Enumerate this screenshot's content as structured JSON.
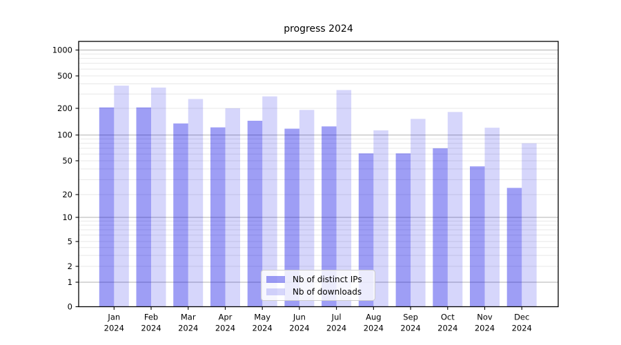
{
  "chart_data": {
    "type": "bar",
    "title": "progress 2024",
    "categories": [
      "Jan 2024",
      "Feb 2024",
      "Mar 2024",
      "Apr 2024",
      "May 2024",
      "Jun 2024",
      "Jul 2024",
      "Aug 2024",
      "Sep 2024",
      "Oct 2024",
      "Nov 2024",
      "Dec 2024"
    ],
    "series": [
      {
        "name": "Nb of distinct IPs",
        "color": "rgba(0,0,230,0.38)",
        "values": [
          205,
          205,
          135,
          122,
          145,
          118,
          125,
          61,
          61,
          70,
          43,
          24
        ]
      },
      {
        "name": "Nb of downloads",
        "color": "rgba(0,0,230,0.16)",
        "values": [
          380,
          360,
          260,
          200,
          280,
          192,
          335,
          113,
          152,
          182,
          121,
          80
        ]
      }
    ],
    "yscale": "symlog",
    "yticks": [
      0,
      1,
      2,
      5,
      10,
      20,
      50,
      100,
      200,
      500,
      1000
    ],
    "ylim": [
      0,
      1000
    ],
    "grid": true,
    "legend_position": "lower-center",
    "colors": {
      "grid_major": "#b0b0b0",
      "grid_minor": "#e7e7e7",
      "spine": "#000000",
      "text": "#000000",
      "background": "#ffffff"
    }
  }
}
